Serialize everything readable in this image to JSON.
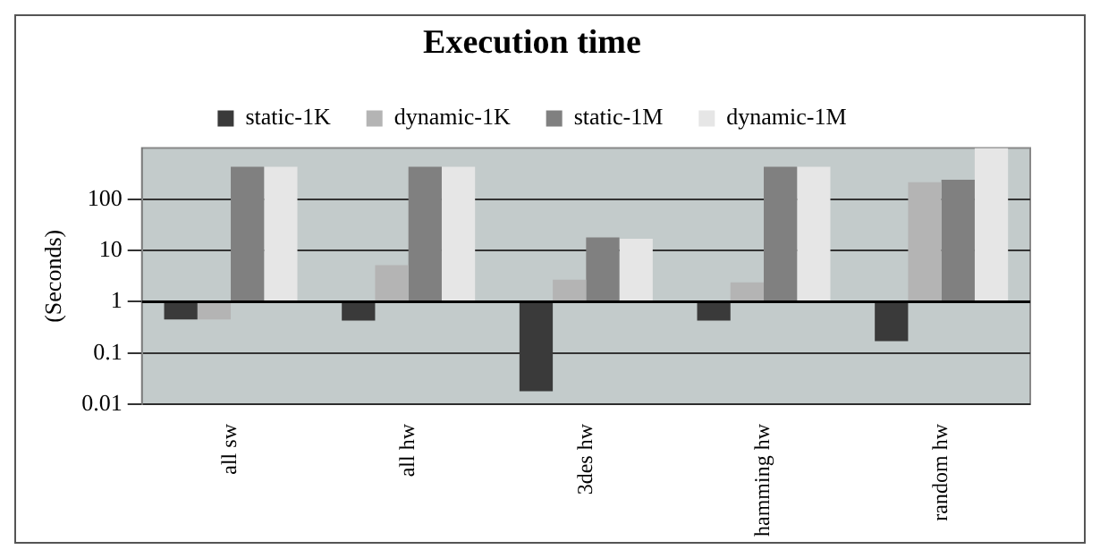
{
  "chart_data": {
    "type": "bar",
    "title": "Execution time",
    "ylabel": "(Seconds)",
    "categories": [
      "all sw",
      "all hw",
      "3des hw",
      "hamming hw",
      "random hw"
    ],
    "series": [
      {
        "name": "static-1K",
        "color": "#3a3a3a",
        "base": [
          1,
          1,
          1,
          1,
          1
        ],
        "values": [
          -0.55,
          -0.57,
          -0.982,
          -0.57,
          -0.83
        ]
      },
      {
        "name": "dynamic-1K",
        "color": "#b4b4b4",
        "base": [
          1,
          1,
          1,
          1,
          1
        ],
        "values": [
          -0.55,
          4.2,
          1.7,
          1.4,
          214
        ]
      },
      {
        "name": "static-1M",
        "color": "#808080",
        "base": [
          1,
          1,
          1,
          1,
          1
        ],
        "values": [
          429,
          429,
          17,
          429,
          239
        ]
      },
      {
        "name": "dynamic-1M",
        "color": "#e6e6e6",
        "base": [
          1,
          1,
          1,
          1,
          1
        ],
        "values": [
          429,
          429,
          16,
          429,
          999
        ]
      }
    ],
    "ref_lines": [
      {
        "axis": "y",
        "value": 1,
        "color": "#000000"
      }
    ],
    "log": "y",
    "ylim": [
      0.01,
      1000
    ],
    "yticks": [
      0.01,
      0.1,
      1,
      10,
      100
    ],
    "grid": "y",
    "legend": "top"
  }
}
